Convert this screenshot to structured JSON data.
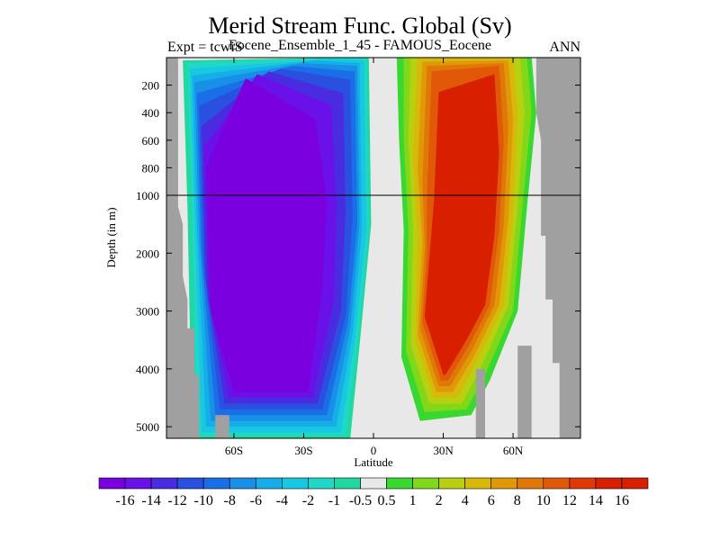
{
  "chart_data": {
    "type": "heatmap",
    "title": "Merid Stream Func. Global (Sv)",
    "subtitle_left": "Expt = tcwiS",
    "subtitle_center": "Eocene_Ensemble_1_45 - FAMOUS_Eocene",
    "subtitle_right": "ANN",
    "xlabel": "Latitude",
    "ylabel": "Depth (in m)",
    "x_ticks": [
      "60S",
      "30S",
      "0",
      "30N",
      "60N"
    ],
    "x_tick_values": [
      -60,
      -30,
      0,
      30,
      60
    ],
    "xlim": [
      -89,
      89
    ],
    "y_ticks_upper": [
      "200",
      "400",
      "600",
      "800",
      "1000"
    ],
    "y_tick_values_upper": [
      200,
      400,
      600,
      800,
      1000
    ],
    "y_ticks_lower": [
      "2000",
      "3000",
      "4000",
      "5000"
    ],
    "y_tick_values_lower": [
      2000,
      3000,
      4000,
      5000
    ],
    "ylim": [
      5200,
      0
    ],
    "axis_break_depth": 1000,
    "colorbar_labels": [
      "-16",
      "-14",
      "-12",
      "-10",
      "-8",
      "-6",
      "-4",
      "-2",
      "-1",
      "-0.5",
      "0.5",
      "1",
      "2",
      "4",
      "6",
      "8",
      "10",
      "12",
      "14",
      "16"
    ],
    "colorbar_colors": [
      "#7a00e0",
      "#6a10e8",
      "#4a2ce0",
      "#2a50e0",
      "#1a6ee8",
      "#1890e8",
      "#16aee8",
      "#18c8e0",
      "#20d8c8",
      "#20d8a0",
      "#e8e8e8",
      "#38d830",
      "#80d818",
      "#b8d010",
      "#d8b808",
      "#e09808",
      "#e07808",
      "#e05808",
      "#e03808",
      "#d82000"
    ],
    "regions": {
      "southern_cell": {
        "lat_range": [
          -80,
          -5
        ],
        "depth_range": [
          100,
          5000
        ],
        "min_value": -16,
        "sign": "negative"
      },
      "northern_cell": {
        "lat_range": [
          10,
          62
        ],
        "depth_range": [
          0,
          4800
        ],
        "max_value": 16,
        "sign": "positive"
      }
    },
    "grid": false,
    "legend_position": "bottom"
  }
}
